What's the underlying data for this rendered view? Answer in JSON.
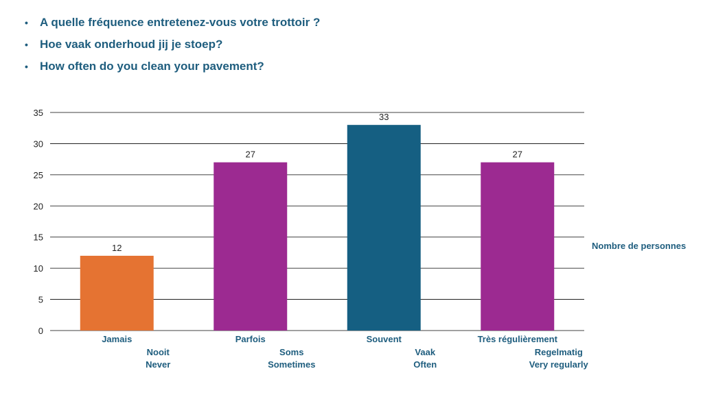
{
  "questions": [
    "A quelle fréquence entretenez-vous votre trottoir ?",
    "Hoe vaak onderhoud jij je stoep?",
    "How often do you clean your pavement?"
  ],
  "bullet_symbol": "•",
  "chart_data": {
    "type": "bar",
    "categories": [
      [
        "Jamais",
        "Nooit",
        "Never"
      ],
      [
        "Parfois",
        "Soms",
        "Sometimes"
      ],
      [
        "Souvent",
        "Vaak",
        "Often"
      ],
      [
        "Très régulièrement",
        "Regelmatig",
        "Very regularly"
      ]
    ],
    "values": [
      12,
      27,
      33,
      27
    ],
    "bar_colors": [
      "#e57332",
      "#9c2a91",
      "#155f82",
      "#9c2a91"
    ],
    "ylim": [
      0,
      35
    ],
    "yticks": [
      0,
      5,
      10,
      15,
      20,
      25,
      30,
      35
    ],
    "legend": "Nombre de personnes",
    "legend_position": "right",
    "grid": true,
    "data_labels": true
  },
  "colors": {
    "text_accent": "#1e5d7e",
    "grid": "#000000"
  }
}
